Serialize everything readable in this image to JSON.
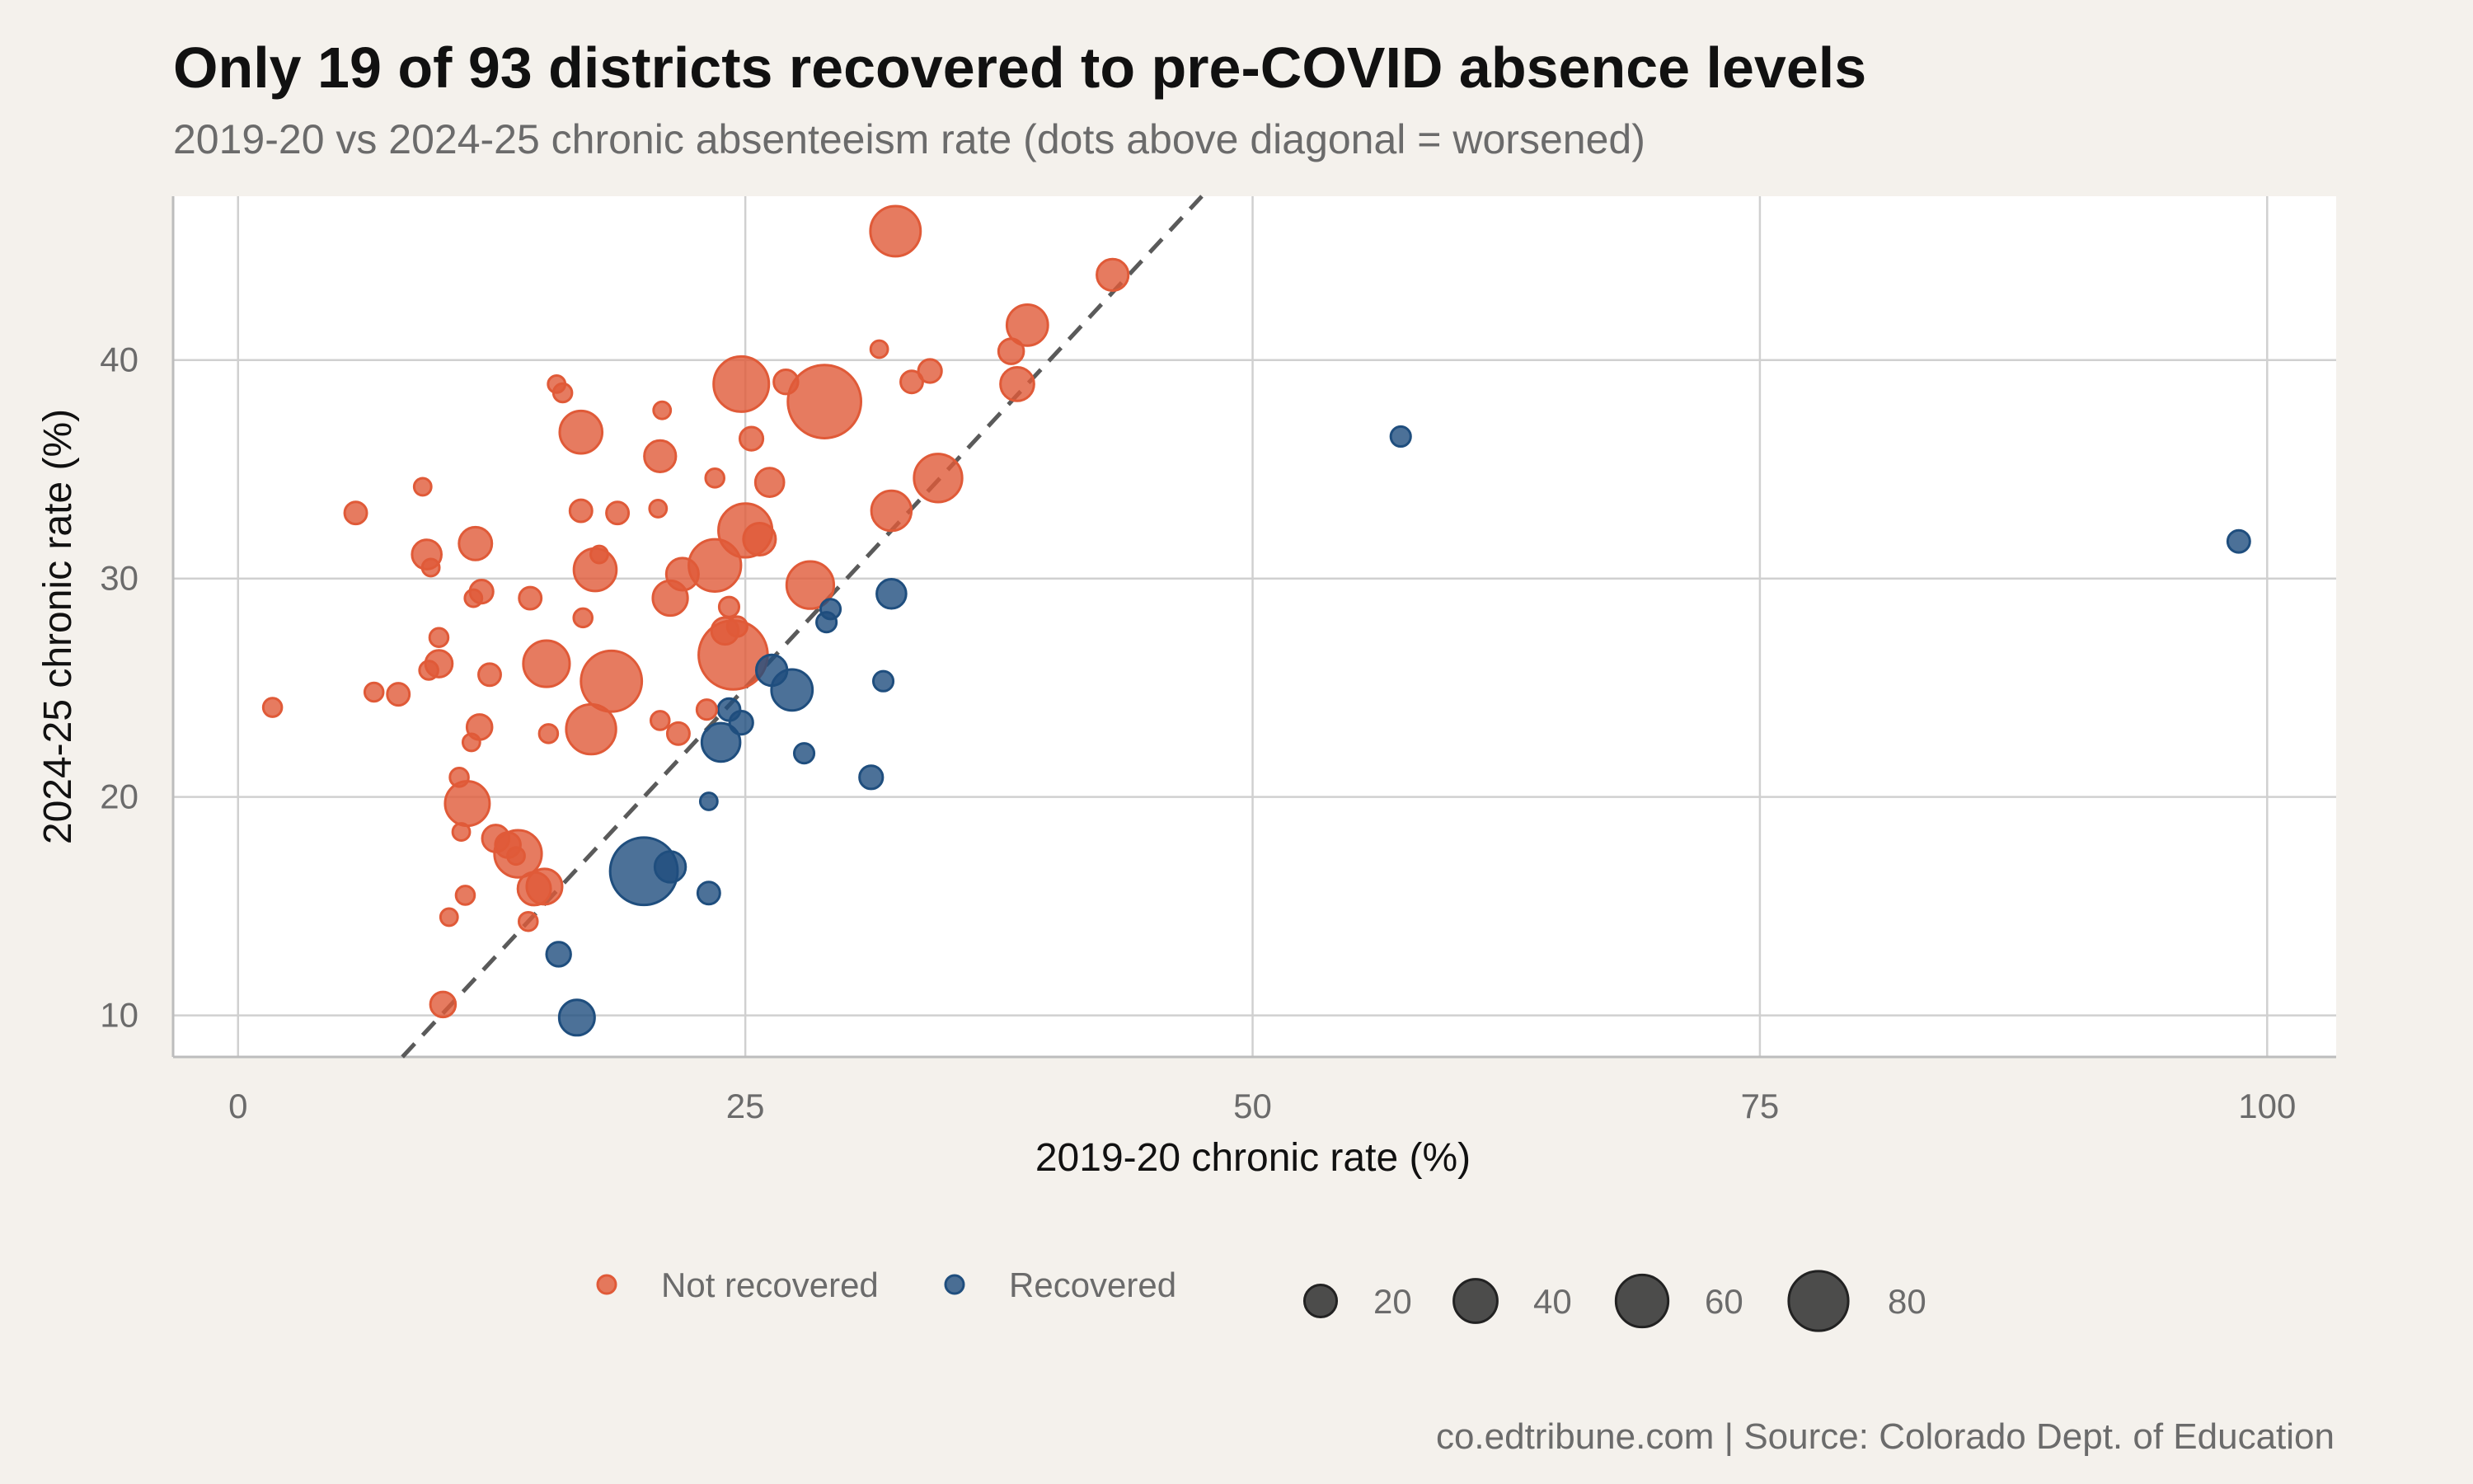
{
  "chart_data": {
    "type": "scatter",
    "title": "Only 19 of 93 districts recovered to pre-COVID absence levels",
    "subtitle": "2019-20 vs 2024-25 chronic absenteeism rate (dots above diagonal = worsened)",
    "xlabel": "2019-20 chronic rate (%)",
    "ylabel": "2024-25 chronic rate (%)",
    "caption": "co.edtribune.com | Source: Colorado Dept. of Education",
    "xlim": [
      -3.2,
      103.4
    ],
    "ylim": [
      8.1,
      47.5
    ],
    "x_ticks": [
      0,
      25,
      50,
      75,
      100
    ],
    "y_ticks": [
      10,
      20,
      30,
      40
    ],
    "grid": true,
    "reference_line": "y = x",
    "legend_position": "bottom",
    "legend": {
      "color": [
        {
          "label": "Not recovered",
          "color": "#e05a38"
        },
        {
          "label": "Recovered",
          "color": "#1f4e7e"
        }
      ],
      "size": [
        20,
        40,
        60,
        80
      ]
    },
    "series": [
      {
        "name": "Not recovered",
        "color": "#e05a38",
        "points": [
          {
            "x": 1.7,
            "y": 24.1,
            "size": 5
          },
          {
            "x": 5.8,
            "y": 33.0,
            "size": 8
          },
          {
            "x": 6.7,
            "y": 24.8,
            "size": 5
          },
          {
            "x": 7.9,
            "y": 24.7,
            "size": 8
          },
          {
            "x": 9.1,
            "y": 34.2,
            "size": 4
          },
          {
            "x": 9.3,
            "y": 31.1,
            "size": 16
          },
          {
            "x": 9.5,
            "y": 30.5,
            "size": 4
          },
          {
            "x": 9.4,
            "y": 25.8,
            "size": 5
          },
          {
            "x": 9.9,
            "y": 27.3,
            "size": 5
          },
          {
            "x": 9.9,
            "y": 26.1,
            "size": 13
          },
          {
            "x": 10.1,
            "y": 10.5,
            "size": 11
          },
          {
            "x": 10.4,
            "y": 14.5,
            "size": 4
          },
          {
            "x": 10.9,
            "y": 20.9,
            "size": 5
          },
          {
            "x": 11.0,
            "y": 18.4,
            "size": 4
          },
          {
            "x": 11.2,
            "y": 15.5,
            "size": 5
          },
          {
            "x": 11.3,
            "y": 19.7,
            "size": 42
          },
          {
            "x": 11.5,
            "y": 22.5,
            "size": 4
          },
          {
            "x": 11.6,
            "y": 29.1,
            "size": 4
          },
          {
            "x": 11.7,
            "y": 31.6,
            "size": 21
          },
          {
            "x": 11.9,
            "y": 23.2,
            "size": 11
          },
          {
            "x": 12.0,
            "y": 29.4,
            "size": 9
          },
          {
            "x": 12.4,
            "y": 25.6,
            "size": 8
          },
          {
            "x": 12.7,
            "y": 18.1,
            "size": 13
          },
          {
            "x": 13.3,
            "y": 17.8,
            "size": 11
          },
          {
            "x": 13.7,
            "y": 17.3,
            "size": 4
          },
          {
            "x": 13.8,
            "y": 17.4,
            "size": 48
          },
          {
            "x": 14.3,
            "y": 14.3,
            "size": 5
          },
          {
            "x": 14.4,
            "y": 29.1,
            "size": 8
          },
          {
            "x": 14.6,
            "y": 15.8,
            "size": 21
          },
          {
            "x": 15.1,
            "y": 15.9,
            "size": 25
          },
          {
            "x": 15.2,
            "y": 26.1,
            "size": 46
          },
          {
            "x": 15.3,
            "y": 22.9,
            "size": 5
          },
          {
            "x": 15.7,
            "y": 38.9,
            "size": 4
          },
          {
            "x": 16.0,
            "y": 38.5,
            "size": 5
          },
          {
            "x": 16.9,
            "y": 36.7,
            "size": 38
          },
          {
            "x": 16.9,
            "y": 33.1,
            "size": 8
          },
          {
            "x": 17.0,
            "y": 28.2,
            "size": 5
          },
          {
            "x": 17.4,
            "y": 23.1,
            "size": 54
          },
          {
            "x": 17.6,
            "y": 30.4,
            "size": 38
          },
          {
            "x": 17.8,
            "y": 31.1,
            "size": 4
          },
          {
            "x": 18.4,
            "y": 25.3,
            "size": 84
          },
          {
            "x": 18.7,
            "y": 33.0,
            "size": 8
          },
          {
            "x": 20.7,
            "y": 33.2,
            "size": 4
          },
          {
            "x": 20.8,
            "y": 35.6,
            "size": 19
          },
          {
            "x": 20.8,
            "y": 23.5,
            "size": 5
          },
          {
            "x": 20.9,
            "y": 37.7,
            "size": 4
          },
          {
            "x": 21.3,
            "y": 29.1,
            "size": 24
          },
          {
            "x": 21.7,
            "y": 22.9,
            "size": 8
          },
          {
            "x": 21.9,
            "y": 30.2,
            "size": 20
          },
          {
            "x": 23.1,
            "y": 24.0,
            "size": 6
          },
          {
            "x": 23.5,
            "y": 30.6,
            "size": 60
          },
          {
            "x": 23.5,
            "y": 34.6,
            "size": 5
          },
          {
            "x": 24.0,
            "y": 27.6,
            "size": 13
          },
          {
            "x": 24.2,
            "y": 28.7,
            "size": 6
          },
          {
            "x": 24.4,
            "y": 26.5,
            "size": 110
          },
          {
            "x": 24.6,
            "y": 27.8,
            "size": 6
          },
          {
            "x": 24.8,
            "y": 38.9,
            "size": 68
          },
          {
            "x": 25.0,
            "y": 32.2,
            "size": 64
          },
          {
            "x": 25.3,
            "y": 36.4,
            "size": 9
          },
          {
            "x": 25.7,
            "y": 31.8,
            "size": 20
          },
          {
            "x": 26.2,
            "y": 34.4,
            "size": 15
          },
          {
            "x": 27.0,
            "y": 39.0,
            "size": 10
          },
          {
            "x": 28.2,
            "y": 29.7,
            "size": 48
          },
          {
            "x": 28.9,
            "y": 38.1,
            "size": 125
          },
          {
            "x": 31.6,
            "y": 40.5,
            "size": 4
          },
          {
            "x": 32.2,
            "y": 33.1,
            "size": 33
          },
          {
            "x": 32.4,
            "y": 45.9,
            "size": 55
          },
          {
            "x": 33.2,
            "y": 39.0,
            "size": 8
          },
          {
            "x": 34.1,
            "y": 39.5,
            "size": 9
          },
          {
            "x": 34.5,
            "y": 34.6,
            "size": 50
          },
          {
            "x": 38.1,
            "y": 40.4,
            "size": 11
          },
          {
            "x": 38.4,
            "y": 38.9,
            "size": 22
          },
          {
            "x": 38.9,
            "y": 41.6,
            "size": 35
          },
          {
            "x": 43.1,
            "y": 43.9,
            "size": 19
          }
        ]
      },
      {
        "name": "Recovered",
        "color": "#1f4e7e",
        "points": [
          {
            "x": 15.8,
            "y": 12.8,
            "size": 10
          },
          {
            "x": 16.7,
            "y": 9.9,
            "size": 25
          },
          {
            "x": 20.0,
            "y": 16.6,
            "size": 105
          },
          {
            "x": 21.3,
            "y": 16.8,
            "size": 18
          },
          {
            "x": 23.2,
            "y": 19.8,
            "size": 4
          },
          {
            "x": 23.2,
            "y": 15.6,
            "size": 8
          },
          {
            "x": 23.8,
            "y": 22.5,
            "size": 30
          },
          {
            "x": 24.2,
            "y": 24.0,
            "size": 8
          },
          {
            "x": 24.8,
            "y": 23.4,
            "size": 9
          },
          {
            "x": 26.3,
            "y": 25.8,
            "size": 18
          },
          {
            "x": 27.3,
            "y": 24.9,
            "size": 35
          },
          {
            "x": 27.9,
            "y": 22.0,
            "size": 6
          },
          {
            "x": 29.0,
            "y": 28.0,
            "size": 6
          },
          {
            "x": 29.2,
            "y": 28.6,
            "size": 6
          },
          {
            "x": 31.2,
            "y": 20.9,
            "size": 9
          },
          {
            "x": 31.8,
            "y": 25.3,
            "size": 6
          },
          {
            "x": 32.2,
            "y": 29.3,
            "size": 16
          },
          {
            "x": 57.3,
            "y": 36.5,
            "size": 6
          },
          {
            "x": 98.6,
            "y": 31.7,
            "size": 8
          }
        ]
      }
    ]
  }
}
